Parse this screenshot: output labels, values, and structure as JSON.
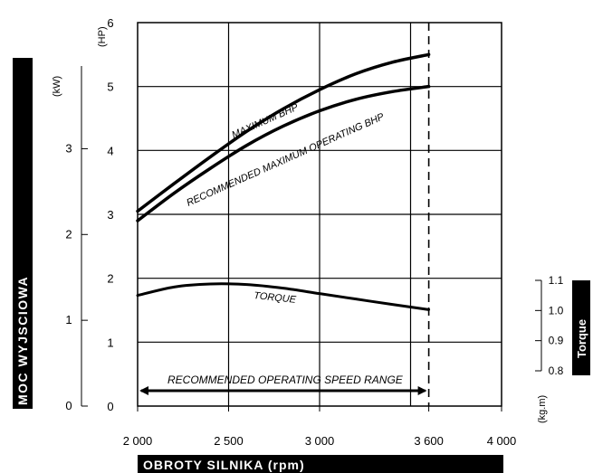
{
  "chart_data": {
    "type": "line",
    "xlabel": "OBROTY SILNIKA (rpm)",
    "ylabel_left": "MOC WYJSCIOWA",
    "ylabel_right": "Torque",
    "x_ticks": [
      "2 000",
      "2 500",
      "3 000",
      "3 600",
      "4 000"
    ],
    "x_tick_values": [
      2000,
      2500,
      3000,
      3600,
      4000
    ],
    "xlim": [
      2000,
      4000
    ],
    "hp_unit": "(HP)",
    "hp_ticks": [
      "0",
      "1",
      "2",
      "3",
      "4",
      "5",
      "6"
    ],
    "hp_lim": [
      0,
      6
    ],
    "kw_unit": "(kW)",
    "kw_ticks": [
      "0",
      "1",
      "2",
      "3"
    ],
    "kw_lim": [
      0,
      4.47
    ],
    "torque_unit": "(kg.m)",
    "torque_ticks": [
      "0.8",
      "0.9",
      "1.0",
      "1.1"
    ],
    "torque_tick_values": [
      0.8,
      0.9,
      1.0,
      1.1
    ],
    "torque_lim": [
      0.8,
      1.1
    ],
    "grid": true,
    "series": [
      {
        "name": "MAXIMUM BHP",
        "axis": "hp",
        "x": [
          2000,
          2200,
          2400,
          2600,
          2800,
          3000,
          3200,
          3400,
          3600
        ],
        "y": [
          3.05,
          3.48,
          3.9,
          4.3,
          4.65,
          4.95,
          5.2,
          5.38,
          5.5
        ]
      },
      {
        "name": "RECOMMENDED MAXIMUM OPERATING BHP",
        "axis": "hp",
        "x": [
          2000,
          2200,
          2400,
          2600,
          2800,
          3000,
          3200,
          3400,
          3600
        ],
        "y": [
          2.9,
          3.33,
          3.72,
          4.08,
          4.38,
          4.62,
          4.8,
          4.92,
          5.0
        ]
      },
      {
        "name": "TORQUE",
        "axis": "torque",
        "x": [
          2000,
          2200,
          2400,
          2600,
          2800,
          3000,
          3200,
          3400,
          3600
        ],
        "y": [
          1.05,
          1.078,
          1.088,
          1.086,
          1.074,
          1.056,
          1.038,
          1.02,
          1.003
        ]
      }
    ],
    "annotations": {
      "speed_range_label": "RECOMMENDED OPERATING SPEED RANGE",
      "speed_range": [
        2000,
        3600
      ],
      "limit_rpm": 3600
    }
  }
}
